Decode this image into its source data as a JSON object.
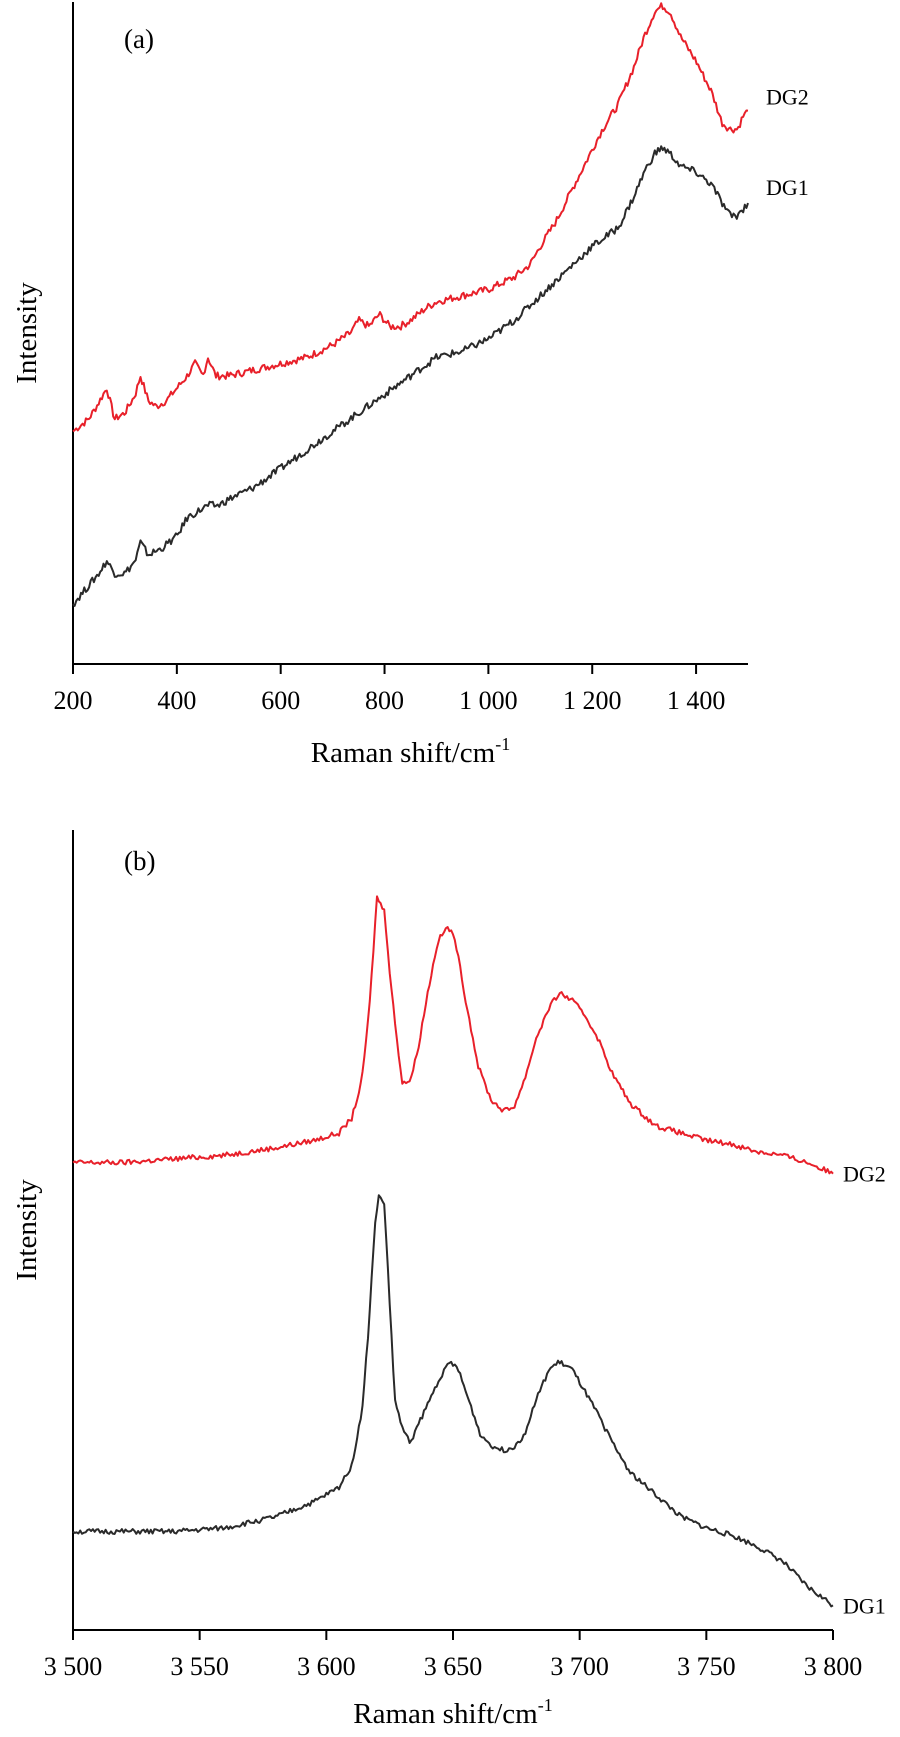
{
  "chart_data": [
    {
      "type": "line",
      "panel_label": "(a)",
      "xlabel": "Raman shift/cm",
      "xlabel_superscript": "-1",
      "ylabel": "Intensity",
      "xlim": [
        200,
        1500
      ],
      "ylim": [
        0,
        100
      ],
      "x_ticks": [
        {
          "value": 200,
          "label": "200"
        },
        {
          "value": 400,
          "label": "400"
        },
        {
          "value": 600,
          "label": "600"
        },
        {
          "value": 800,
          "label": "800"
        },
        {
          "value": 1000,
          "label": "1 000"
        },
        {
          "value": 1200,
          "label": "1 200"
        },
        {
          "value": 1400,
          "label": "1 400"
        }
      ],
      "series": [
        {
          "name": "DG2",
          "color": "#e8202a",
          "points": [
            [
              200,
              33
            ],
            [
              230,
              35
            ],
            [
              245,
              37
            ],
            [
              265,
              40
            ],
            [
              280,
              35
            ],
            [
              300,
              36
            ],
            [
              320,
              39
            ],
            [
              330,
              42
            ],
            [
              345,
              38
            ],
            [
              360,
              37
            ],
            [
              380,
              38
            ],
            [
              400,
              40
            ],
            [
              420,
              42
            ],
            [
              435,
              44
            ],
            [
              450,
              42
            ],
            [
              460,
              45
            ],
            [
              475,
              42
            ],
            [
              500,
              42
            ],
            [
              550,
              43
            ],
            [
              600,
              44
            ],
            [
              650,
              45
            ],
            [
              700,
              47
            ],
            [
              735,
              49
            ],
            [
              750,
              51
            ],
            [
              770,
              50
            ],
            [
              790,
              52
            ],
            [
              810,
              50
            ],
            [
              830,
              50
            ],
            [
              850,
              51
            ],
            [
              880,
              53
            ],
            [
              900,
              54
            ],
            [
              950,
              55
            ],
            [
              1000,
              56
            ],
            [
              1050,
              58
            ],
            [
              1080,
              60
            ],
            [
              1100,
              63
            ],
            [
              1130,
              67
            ],
            [
              1160,
              72
            ],
            [
              1190,
              77
            ],
            [
              1220,
              82
            ],
            [
              1250,
              86
            ],
            [
              1280,
              92
            ],
            [
              1300,
              97
            ],
            [
              1320,
              101
            ],
            [
              1335,
              102
            ],
            [
              1350,
              101
            ],
            [
              1370,
              97
            ],
            [
              1400,
              93
            ],
            [
              1430,
              88
            ],
            [
              1450,
              83
            ],
            [
              1465,
              82
            ],
            [
              1480,
              82
            ],
            [
              1490,
              84
            ],
            [
              1500,
              85
            ]
          ]
        },
        {
          "name": "DG1",
          "color": "#2a2a2a",
          "points": [
            [
              200,
              5
            ],
            [
              230,
              8
            ],
            [
              250,
              10
            ],
            [
              265,
              12
            ],
            [
              280,
              10
            ],
            [
              300,
              10
            ],
            [
              320,
              12
            ],
            [
              330,
              15
            ],
            [
              345,
              13
            ],
            [
              370,
              14
            ],
            [
              400,
              16
            ],
            [
              420,
              19
            ],
            [
              440,
              20
            ],
            [
              460,
              21
            ],
            [
              480,
              21
            ],
            [
              500,
              22
            ],
            [
              550,
              24
            ],
            [
              600,
              27
            ],
            [
              650,
              30
            ],
            [
              700,
              33
            ],
            [
              750,
              36
            ],
            [
              800,
              39
            ],
            [
              850,
              42
            ],
            [
              900,
              45
            ],
            [
              950,
              46
            ],
            [
              1000,
              48
            ],
            [
              1050,
              51
            ],
            [
              1100,
              55
            ],
            [
              1150,
              59
            ],
            [
              1200,
              63
            ],
            [
              1250,
              66
            ],
            [
              1280,
              71
            ],
            [
              1300,
              75
            ],
            [
              1320,
              78
            ],
            [
              1335,
              79
            ],
            [
              1350,
              78
            ],
            [
              1370,
              76
            ],
            [
              1400,
              75
            ],
            [
              1430,
              73
            ],
            [
              1450,
              70
            ],
            [
              1465,
              68
            ],
            [
              1480,
              68
            ],
            [
              1490,
              69
            ],
            [
              1500,
              70
            ]
          ]
        }
      ]
    },
    {
      "type": "line",
      "panel_label": "(b)",
      "xlabel": "Raman shift/cm",
      "xlabel_superscript": "-1",
      "ylabel": "Intensity",
      "xlim": [
        3500,
        3800
      ],
      "ylim": [
        0,
        100
      ],
      "x_ticks": [
        {
          "value": 3500,
          "label": "3 500"
        },
        {
          "value": 3550,
          "label": "3 550"
        },
        {
          "value": 3600,
          "label": "3 600"
        },
        {
          "value": 3650,
          "label": "3 650"
        },
        {
          "value": 3700,
          "label": "3 700"
        },
        {
          "value": 3750,
          "label": "3 750"
        },
        {
          "value": 3800,
          "label": "3 800"
        }
      ],
      "series": [
        {
          "name": "DG2",
          "color": "#e8202a",
          "points": [
            [
              3500,
              59
            ],
            [
              3520,
              59
            ],
            [
              3540,
              59.5
            ],
            [
              3560,
              60
            ],
            [
              3580,
              61
            ],
            [
              3595,
              62
            ],
            [
              3605,
              63
            ],
            [
              3610,
              65
            ],
            [
              3614,
              70
            ],
            [
              3617,
              80
            ],
            [
              3620,
              95
            ],
            [
              3623,
              93
            ],
            [
              3625,
              85
            ],
            [
              3628,
              75
            ],
            [
              3630,
              70
            ],
            [
              3633,
              70
            ],
            [
              3636,
              74
            ],
            [
              3640,
              82
            ],
            [
              3644,
              89
            ],
            [
              3648,
              91
            ],
            [
              3651,
              89
            ],
            [
              3655,
              81
            ],
            [
              3660,
              72
            ],
            [
              3665,
              67.5
            ],
            [
              3670,
              66
            ],
            [
              3674,
              66.5
            ],
            [
              3678,
              70
            ],
            [
              3683,
              76
            ],
            [
              3688,
              80
            ],
            [
              3692,
              82
            ],
            [
              3697,
              81
            ],
            [
              3702,
              79
            ],
            [
              3707,
              76
            ],
            [
              3713,
              71
            ],
            [
              3720,
              67
            ],
            [
              3730,
              64
            ],
            [
              3740,
              63
            ],
            [
              3750,
              62
            ],
            [
              3760,
              61.5
            ],
            [
              3770,
              60.5
            ],
            [
              3780,
              60
            ],
            [
              3790,
              59
            ],
            [
              3800,
              57.5
            ]
          ]
        },
        {
          "name": "DG1",
          "color": "#2a2a2a",
          "points": [
            [
              3500,
              9
            ],
            [
              3520,
              9
            ],
            [
              3540,
              9
            ],
            [
              3560,
              9.5
            ],
            [
              3580,
              11
            ],
            [
              3595,
              13
            ],
            [
              3605,
              15
            ],
            [
              3610,
              18
            ],
            [
              3614,
              25
            ],
            [
              3617,
              38
            ],
            [
              3619,
              50
            ],
            [
              3621,
              55
            ],
            [
              3623,
              53
            ],
            [
              3625,
              40
            ],
            [
              3627,
              27
            ],
            [
              3630,
              23
            ],
            [
              3633,
              21
            ],
            [
              3637,
              24
            ],
            [
              3641,
              27
            ],
            [
              3645,
              30
            ],
            [
              3649,
              32
            ],
            [
              3652,
              31
            ],
            [
              3656,
              27
            ],
            [
              3661,
              22
            ],
            [
              3666,
              20.5
            ],
            [
              3670,
              20
            ],
            [
              3674,
              20.5
            ],
            [
              3678,
              22
            ],
            [
              3683,
              27
            ],
            [
              3688,
              31
            ],
            [
              3692,
              32
            ],
            [
              3697,
              31
            ],
            [
              3702,
              28
            ],
            [
              3707,
              25
            ],
            [
              3713,
              21
            ],
            [
              3720,
              17
            ],
            [
              3730,
              14
            ],
            [
              3740,
              11
            ],
            [
              3750,
              9.5
            ],
            [
              3760,
              8.5
            ],
            [
              3770,
              7
            ],
            [
              3780,
              5
            ],
            [
              3790,
              1.5
            ],
            [
              3800,
              -1
            ]
          ]
        }
      ]
    }
  ]
}
